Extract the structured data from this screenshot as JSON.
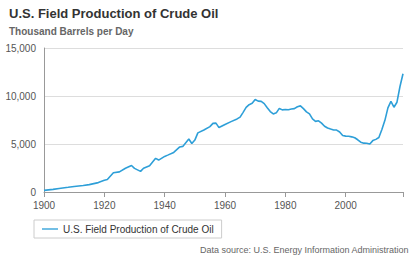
{
  "chart_data": {
    "type": "line",
    "title": "U.S. Field Production of Crude Oil",
    "subtitle": "Thousand Barrels per Day",
    "annotation": "Data source: U.S. Energy Information Administration",
    "series": [
      {
        "name": "U.S. Field Production of Crude Oil",
        "color": "#2e9fd8",
        "x": [
          1900,
          1903,
          1905,
          1908,
          1910,
          1913,
          1915,
          1918,
          1920,
          1921,
          1923,
          1925,
          1927,
          1929,
          1930,
          1932,
          1933,
          1935,
          1937,
          1938,
          1940,
          1941,
          1943,
          1945,
          1946,
          1948,
          1949,
          1950,
          1951,
          1953,
          1955,
          1956,
          1957,
          1958,
          1960,
          1962,
          1964,
          1965,
          1966,
          1967,
          1968,
          1969,
          1970,
          1971,
          1972,
          1973,
          1974,
          1975,
          1976,
          1977,
          1978,
          1979,
          1980,
          1981,
          1982,
          1983,
          1984,
          1985,
          1986,
          1987,
          1988,
          1989,
          1990,
          1991,
          1992,
          1993,
          1994,
          1995,
          1996,
          1997,
          1998,
          1999,
          2000,
          2001,
          2002,
          2003,
          2004,
          2005,
          2006,
          2007,
          2008,
          2009,
          2010,
          2011,
          2012,
          2013,
          2014,
          2015,
          2016,
          2017,
          2018,
          2019
        ],
        "values": [
          174,
          275,
          369,
          490,
          574,
          680,
          770,
          979,
          1214,
          1294,
          2007,
          2097,
          2472,
          2760,
          2460,
          2146,
          2477,
          2733,
          3505,
          3327,
          3707,
          3842,
          4125,
          4695,
          4749,
          5520,
          5046,
          5407,
          6158,
          6458,
          6807,
          7151,
          7170,
          6710,
          7035,
          7332,
          7614,
          7804,
          8295,
          8810,
          9096,
          9238,
          9637,
          9463,
          9441,
          9208,
          8774,
          8375,
          8132,
          8245,
          8707,
          8552,
          8597,
          8572,
          8649,
          8688,
          8879,
          8971,
          8680,
          8349,
          8140,
          7613,
          7355,
          7417,
          7171,
          6847,
          6662,
          6560,
          6465,
          6452,
          6252,
          5881,
          5822,
          5801,
          5744,
          5649,
          5441,
          5184,
          5086,
          5077,
          5000,
          5353,
          5482,
          5671,
          6502,
          7467,
          8759,
          9431,
          8831,
          9352,
          10990,
          12315
        ]
      }
    ],
    "xlim": [
      1900,
      2019
    ],
    "xticks": [
      1900,
      1920,
      1940,
      1960,
      1980,
      2000
    ],
    "ylim": [
      0,
      15000
    ],
    "yticks": [
      0,
      {
        "value": 5000,
        "label": "5,000"
      },
      {
        "value": 10000,
        "label": "10,000"
      },
      {
        "value": 15000,
        "label": "15,000"
      }
    ],
    "grid": true,
    "legend": "bottom-left"
  }
}
